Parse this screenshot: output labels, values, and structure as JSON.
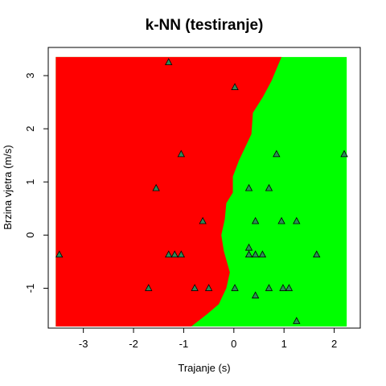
{
  "chart_data": {
    "type": "scatter",
    "title": "k-NN (testiranje)",
    "xlabel": "Trajanje (s)",
    "ylabel": "Brzina vjetra (m/s)",
    "xlim": [
      -3.7,
      2.52
    ],
    "ylim": [
      -1.75,
      3.53
    ],
    "x_ticks": [
      -3,
      -2,
      -1,
      0,
      1,
      2
    ],
    "y_ticks": [
      -1,
      0,
      1,
      2,
      3
    ],
    "grid": false,
    "legend": "none",
    "regions": {
      "left_class_color": "#ff0000",
      "right_class_color": "#00ff00",
      "extent": {
        "x": [
          -3.55,
          2.25
        ],
        "y": [
          -1.72,
          3.35
        ]
      },
      "boundary": [
        {
          "y": -1.72,
          "x": -0.85
        },
        {
          "y": -1.5,
          "x": -0.55
        },
        {
          "y": -1.3,
          "x": -0.3
        },
        {
          "y": -1.0,
          "x": -0.15
        },
        {
          "y": -0.7,
          "x": -0.08
        },
        {
          "y": -0.3,
          "x": -0.2
        },
        {
          "y": 0.0,
          "x": -0.25
        },
        {
          "y": 0.3,
          "x": -0.18
        },
        {
          "y": 0.6,
          "x": -0.15
        },
        {
          "y": 0.8,
          "x": -0.02
        },
        {
          "y": 1.1,
          "x": -0.02
        },
        {
          "y": 1.4,
          "x": 0.1
        },
        {
          "y": 1.9,
          "x": 0.35
        },
        {
          "y": 2.3,
          "x": 0.38
        },
        {
          "y": 2.6,
          "x": 0.58
        },
        {
          "y": 2.9,
          "x": 0.75
        },
        {
          "y": 3.35,
          "x": 0.95
        }
      ]
    },
    "points": [
      {
        "x": -1.3,
        "y": 3.25
      },
      {
        "x": 0.02,
        "y": 2.78
      },
      {
        "x": -1.05,
        "y": 1.52
      },
      {
        "x": 0.85,
        "y": 1.52
      },
      {
        "x": 2.2,
        "y": 1.52
      },
      {
        "x": -1.55,
        "y": 0.88
      },
      {
        "x": 0.3,
        "y": 0.88
      },
      {
        "x": 0.7,
        "y": 0.88
      },
      {
        "x": -0.62,
        "y": 0.26
      },
      {
        "x": 0.43,
        "y": 0.26
      },
      {
        "x": 0.95,
        "y": 0.26
      },
      {
        "x": 1.25,
        "y": 0.26
      },
      {
        "x": 0.3,
        "y": -0.24
      },
      {
        "x": -3.48,
        "y": -0.37
      },
      {
        "x": -1.3,
        "y": -0.37
      },
      {
        "x": -1.18,
        "y": -0.37
      },
      {
        "x": -1.05,
        "y": -0.37
      },
      {
        "x": 0.3,
        "y": -0.37
      },
      {
        "x": 0.43,
        "y": -0.37
      },
      {
        "x": 0.57,
        "y": -0.37
      },
      {
        "x": 1.65,
        "y": -0.37
      },
      {
        "x": -1.7,
        "y": -1.0
      },
      {
        "x": -0.78,
        "y": -1.0
      },
      {
        "x": -0.5,
        "y": -1.0
      },
      {
        "x": 0.02,
        "y": -1.0
      },
      {
        "x": 0.7,
        "y": -1.0
      },
      {
        "x": 0.98,
        "y": -1.0
      },
      {
        "x": 1.1,
        "y": -1.0
      },
      {
        "x": 0.43,
        "y": -1.14
      },
      {
        "x": 1.25,
        "y": -1.62
      }
    ]
  }
}
